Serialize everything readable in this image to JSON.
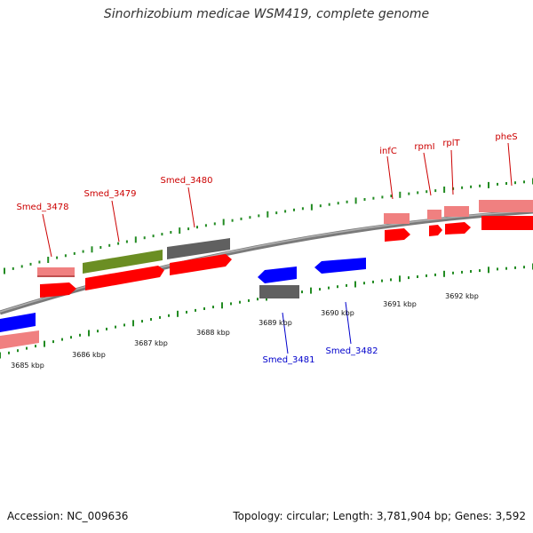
{
  "title": "Sinorhizobium medicae WSM419, complete genome",
  "footer": {
    "accession": "Accession: NC_009636",
    "summary": "Topology: circular; Length: 3,781,904 bp; Genes: 3,592"
  },
  "colors": {
    "backbone": "#808080",
    "cds_forward": "#ff0000",
    "gene_forward": "#f08080",
    "cds_reverse": "#0000ff",
    "other_feature": "#606060",
    "special_feature": "#6b8e23",
    "tick": "#228b22",
    "label_forward": "#cc0000",
    "label_reverse": "#0000cc"
  },
  "scale_labels": [
    "3685 kbp",
    "3686 kbp",
    "3687 kbp",
    "3688 kbp",
    "3689 kbp",
    "3690 kbp",
    "3691 kbp",
    "3692 kbp"
  ],
  "gene_labels_forward": [
    "Smed_3478",
    "Smed_3479",
    "Smed_3480",
    "infC",
    "rpmI",
    "rplT",
    "pheS"
  ],
  "gene_labels_reverse": [
    "Smed_3481",
    "Smed_3482"
  ]
}
